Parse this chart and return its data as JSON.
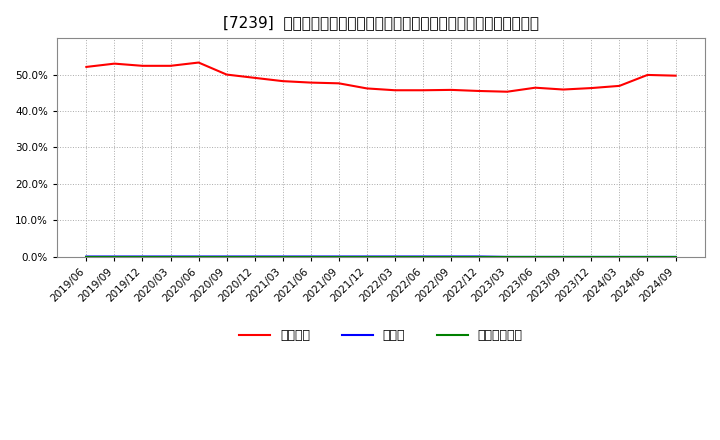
{
  "title": "[7239]  自己資本、のれん、繰延税金資産の総資産に対する比率の推移",
  "x_labels": [
    "2019/06",
    "2019/09",
    "2019/12",
    "2020/03",
    "2020/06",
    "2020/09",
    "2020/12",
    "2021/03",
    "2021/06",
    "2021/09",
    "2021/12",
    "2022/03",
    "2022/06",
    "2022/09",
    "2022/12",
    "2023/03",
    "2023/06",
    "2023/09",
    "2023/12",
    "2024/03",
    "2024/06",
    "2024/09"
  ],
  "equity_ratio": [
    0.521,
    0.53,
    0.524,
    0.524,
    0.533,
    0.5,
    0.491,
    0.482,
    0.478,
    0.476,
    0.462,
    0.457,
    0.457,
    0.458,
    0.455,
    0.453,
    0.464,
    0.459,
    0.463,
    0.469,
    0.499,
    0.497
  ],
  "goodwill_ratio": [
    0.001,
    0.001,
    0.001,
    0.001,
    0.001,
    0.001,
    0.001,
    0.001,
    0.001,
    0.001,
    0.001,
    0.001,
    0.001,
    0.001,
    0.001,
    0.0,
    0.0,
    0.0,
    0.0,
    0.0,
    0.0,
    0.0
  ],
  "deferred_tax_ratio": [
    0.0,
    0.0,
    0.0,
    0.0,
    0.0,
    0.0,
    0.0,
    0.0,
    0.0,
    0.0,
    0.0,
    0.0,
    0.0,
    0.0,
    0.0,
    0.0,
    0.0,
    0.0,
    0.0,
    0.0,
    0.0,
    0.0
  ],
  "equity_color": "#FF0000",
  "goodwill_color": "#0000FF",
  "deferred_tax_color": "#008000",
  "background_color": "#FFFFFF",
  "plot_bg_color": "#FFFFFF",
  "grid_color": "#AAAAAA",
  "ylim": [
    0.0,
    0.6
  ],
  "yticks": [
    0.0,
    0.1,
    0.2,
    0.3,
    0.4,
    0.5
  ],
  "legend_labels": [
    "自己資本",
    "のれん",
    "繰延税金資産"
  ],
  "title_fontsize": 11,
  "tick_fontsize": 7.5,
  "legend_fontsize": 9
}
